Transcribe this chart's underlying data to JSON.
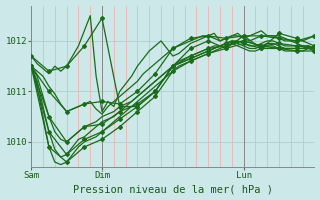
{
  "title": "Pression niveau de la mer( hPa )",
  "bg_color": "#cce8e8",
  "line_color": "#1a6b1a",
  "ylim": [
    1009.5,
    1012.7
  ],
  "yticks": [
    1010,
    1011,
    1012
  ],
  "xlim": [
    0,
    48
  ],
  "xtick_positions": [
    0,
    12,
    36
  ],
  "xtick_labels": [
    "Sam",
    "Dim",
    "Lun"
  ],
  "vgrid_step": 2,
  "series": [
    [
      1011.7,
      1011.55,
      1011.45,
      1011.35,
      1011.5,
      1011.4,
      1011.5,
      1011.7,
      1011.9,
      1012.2,
      1012.5,
      1011.3,
      1010.6,
      1010.8,
      1010.7,
      1011.0,
      1011.15,
      1011.3,
      1011.5,
      1011.65,
      1011.8,
      1011.9,
      1012.0,
      1011.85,
      1011.7,
      1011.75,
      1011.85,
      1011.95,
      1012.0,
      1012.05,
      1012.1,
      1012.15,
      1012.0,
      1012.05,
      1012.1,
      1012.15,
      1012.05,
      1012.1,
      1012.15,
      1012.2,
      1012.1,
      1012.1,
      1012.1,
      1012.05,
      1012.0,
      1011.95,
      1011.9,
      1011.9,
      1011.85
    ],
    [
      1011.5,
      1011.4,
      1011.3,
      1011.1,
      1010.95,
      1010.75,
      1010.6,
      1010.65,
      1010.7,
      1010.75,
      1010.8,
      1010.65,
      1010.55,
      1010.7,
      1010.8,
      1010.9,
      1011.0,
      1011.1,
      1011.2,
      1011.35,
      1011.45,
      1011.55,
      1011.65,
      1011.75,
      1011.85,
      1011.9,
      1011.95,
      1012.0,
      1012.05,
      1012.1,
      1012.1,
      1012.05,
      1012.0,
      1012.05,
      1012.1,
      1012.1,
      1012.05,
      1012.0,
      1012.05,
      1012.1,
      1012.1,
      1012.1,
      1012.05,
      1012.0,
      1012.0,
      1012.0,
      1012.0,
      1012.05,
      1012.1
    ],
    [
      1011.5,
      1011.3,
      1010.9,
      1010.5,
      1010.2,
      1010.05,
      1010.0,
      1010.1,
      1010.2,
      1010.3,
      1010.35,
      1010.4,
      1010.5,
      1010.55,
      1010.6,
      1010.7,
      1010.75,
      1010.8,
      1010.9,
      1011.0,
      1011.1,
      1011.2,
      1011.3,
      1011.4,
      1011.5,
      1011.55,
      1011.6,
      1011.65,
      1011.7,
      1011.75,
      1011.8,
      1011.85,
      1011.9,
      1011.95,
      1012.0,
      1012.0,
      1011.95,
      1011.9,
      1011.9,
      1011.95,
      1012.0,
      1012.0,
      1011.95,
      1011.9,
      1011.9,
      1011.9,
      1011.9,
      1011.9,
      1011.85
    ],
    [
      1011.5,
      1011.2,
      1010.7,
      1010.2,
      1009.85,
      1009.7,
      1009.75,
      1009.9,
      1010.05,
      1010.1,
      1010.2,
      1010.3,
      1010.4,
      1010.45,
      1010.5,
      1010.6,
      1010.7,
      1010.8,
      1010.9,
      1011.0,
      1011.1,
      1011.2,
      1011.3,
      1011.4,
      1011.5,
      1011.6,
      1011.65,
      1011.7,
      1011.75,
      1011.8,
      1011.85,
      1011.9,
      1011.9,
      1011.95,
      1012.0,
      1011.95,
      1011.9,
      1011.85,
      1011.85,
      1011.9,
      1011.95,
      1011.95,
      1011.9,
      1011.85,
      1011.85,
      1011.85,
      1011.85,
      1011.9,
      1011.85
    ],
    [
      1011.5,
      1011.1,
      1010.5,
      1009.9,
      1009.6,
      1009.55,
      1009.6,
      1009.75,
      1009.9,
      1010.0,
      1010.05,
      1010.1,
      1010.2,
      1010.3,
      1010.4,
      1010.5,
      1010.6,
      1010.7,
      1010.8,
      1010.9,
      1011.0,
      1011.1,
      1011.2,
      1011.3,
      1011.4,
      1011.5,
      1011.55,
      1011.6,
      1011.65,
      1011.7,
      1011.75,
      1011.8,
      1011.85,
      1011.9,
      1011.95,
      1011.9,
      1011.85,
      1011.8,
      1011.8,
      1011.85,
      1011.9,
      1011.9,
      1011.85,
      1011.8,
      1011.8,
      1011.8,
      1011.8,
      1011.85,
      1011.8
    ]
  ],
  "marker_series": [
    {
      "x": [
        0,
        3,
        6,
        9,
        12,
        15,
        18,
        21,
        24,
        27,
        30,
        33,
        36,
        39,
        42,
        45,
        48
      ],
      "y": [
        1011.7,
        1011.4,
        1011.5,
        1011.9,
        1012.45,
        1010.7,
        1010.7,
        1011.0,
        1011.5,
        1011.85,
        1012.0,
        1011.85,
        1012.1,
        1011.85,
        1012.15,
        1012.05,
        1011.9
      ]
    },
    {
      "x": [
        0,
        3,
        6,
        9,
        12,
        15,
        18,
        21,
        24,
        27,
        30,
        33,
        36,
        39,
        42,
        45,
        48
      ],
      "y": [
        1011.5,
        1011.0,
        1010.6,
        1010.75,
        1010.8,
        1010.75,
        1011.0,
        1011.35,
        1011.85,
        1012.05,
        1012.1,
        1012.05,
        1012.1,
        1012.1,
        1012.05,
        1012.0,
        1012.1
      ]
    },
    {
      "x": [
        0,
        3,
        6,
        9,
        12,
        15,
        18,
        21,
        24,
        27,
        30,
        33,
        36,
        39,
        42,
        45,
        48
      ],
      "y": [
        1011.5,
        1010.5,
        1010.0,
        1010.3,
        1010.35,
        1010.6,
        1010.75,
        1011.0,
        1011.5,
        1011.65,
        1011.8,
        1011.95,
        1012.0,
        1011.9,
        1011.95,
        1011.9,
        1011.85
      ]
    },
    {
      "x": [
        0,
        3,
        6,
        9,
        12,
        15,
        18,
        21,
        24,
        27,
        30,
        33,
        36,
        39,
        42,
        45,
        48
      ],
      "y": [
        1011.5,
        1010.2,
        1009.75,
        1010.05,
        1010.2,
        1010.45,
        1010.7,
        1011.0,
        1011.5,
        1011.7,
        1011.85,
        1011.9,
        1012.0,
        1011.9,
        1011.85,
        1011.85,
        1011.85
      ]
    },
    {
      "x": [
        0,
        3,
        6,
        9,
        12,
        15,
        18,
        21,
        24,
        27,
        30,
        33,
        36,
        39,
        42,
        45,
        48
      ],
      "y": [
        1011.5,
        1009.9,
        1009.6,
        1009.9,
        1010.05,
        1010.3,
        1010.6,
        1010.9,
        1011.4,
        1011.6,
        1011.75,
        1011.85,
        1011.95,
        1011.85,
        1011.85,
        1011.8,
        1011.8
      ]
    }
  ]
}
